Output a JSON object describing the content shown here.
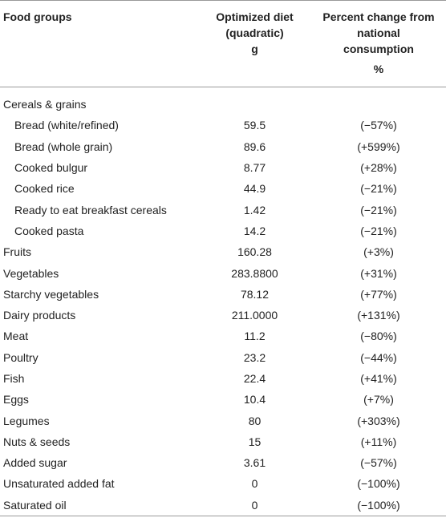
{
  "headers": {
    "food": "Food groups",
    "optimized_line1": "Optimized diet",
    "optimized_line2": "(quadratic)",
    "optimized_unit": "g",
    "pct_line1": "Percent change from",
    "pct_line2": "national",
    "pct_line3": "consumption",
    "pct_unit": "%"
  },
  "rows": [
    {
      "food": "Cereals & grains",
      "optimized": "",
      "pct": ""
    },
    {
      "food": "Bread (white/refined)",
      "optimized": "59.5",
      "pct": "(−57%)"
    },
    {
      "food": "Bread (whole grain)",
      "optimized": "89.6",
      "pct": "(+599%)"
    },
    {
      "food": "Cooked bulgur",
      "optimized": "8.77",
      "pct": "(+28%)"
    },
    {
      "food": "Cooked rice",
      "optimized": "44.9",
      "pct": "(−21%)"
    },
    {
      "food": "Ready to eat breakfast cereals",
      "optimized": "1.42",
      "pct": "(−21%)"
    },
    {
      "food": "Cooked pasta",
      "optimized": "14.2",
      "pct": "(−21%)"
    },
    {
      "food": "Fruits",
      "optimized": "160.28",
      "pct": "(+3%)"
    },
    {
      "food": "Vegetables",
      "optimized": "283.8800",
      "pct": "(+31%)"
    },
    {
      "food": "Starchy vegetables",
      "optimized": "78.12",
      "pct": "(+77%)"
    },
    {
      "food": "Dairy products",
      "optimized": "211.0000",
      "pct": "(+131%)"
    },
    {
      "food": "Meat",
      "optimized": "11.2",
      "pct": "(−80%)"
    },
    {
      "food": "Poultry",
      "optimized": "23.2",
      "pct": "(−44%)"
    },
    {
      "food": "Fish",
      "optimized": "22.4",
      "pct": "(+41%)"
    },
    {
      "food": "Eggs",
      "optimized": "10.4",
      "pct": "(+7%)"
    },
    {
      "food": "Legumes",
      "optimized": "80",
      "pct": "(+303%)"
    },
    {
      "food": "Nuts & seeds",
      "optimized": "15",
      "pct": "(+11%)"
    },
    {
      "food": "Added sugar",
      "optimized": "3.61",
      "pct": "(−57%)"
    },
    {
      "food": "Unsaturated added fat",
      "optimized": "0",
      "pct": "(−100%)"
    },
    {
      "food": "Saturated oil",
      "optimized": "0",
      "pct": "(−100%)"
    }
  ]
}
